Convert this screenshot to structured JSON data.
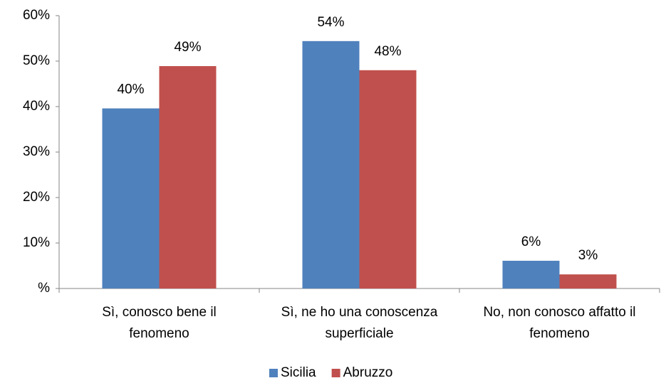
{
  "chart_data": {
    "type": "bar",
    "categories": [
      [
        "Sì, conosco bene il",
        "fenomeno"
      ],
      [
        "Sì, ne ho una conoscenza",
        "superficiale"
      ],
      [
        "No, non conosco affatto il",
        "fenomeno"
      ]
    ],
    "series": [
      {
        "name": "Sicilia",
        "color": "#4f81bd",
        "values": [
          39.6,
          54.4,
          6.1
        ],
        "value_labels": [
          "40%",
          "54%",
          "6%"
        ]
      },
      {
        "name": "Abruzzo",
        "color": "#c0504d",
        "values": [
          48.9,
          48.0,
          3.1
        ],
        "value_labels": [
          "49%",
          "48%",
          "3%"
        ]
      }
    ],
    "ylim": [
      0,
      60
    ],
    "yticks": [
      {
        "value": 0,
        "label": "%"
      },
      {
        "value": 10,
        "label": "10%"
      },
      {
        "value": 20,
        "label": "20%"
      },
      {
        "value": 30,
        "label": "30%"
      },
      {
        "value": 40,
        "label": "40%"
      },
      {
        "value": 50,
        "label": "50%"
      },
      {
        "value": 60,
        "label": "60%"
      }
    ],
    "grid": false,
    "legend": "bottom"
  }
}
